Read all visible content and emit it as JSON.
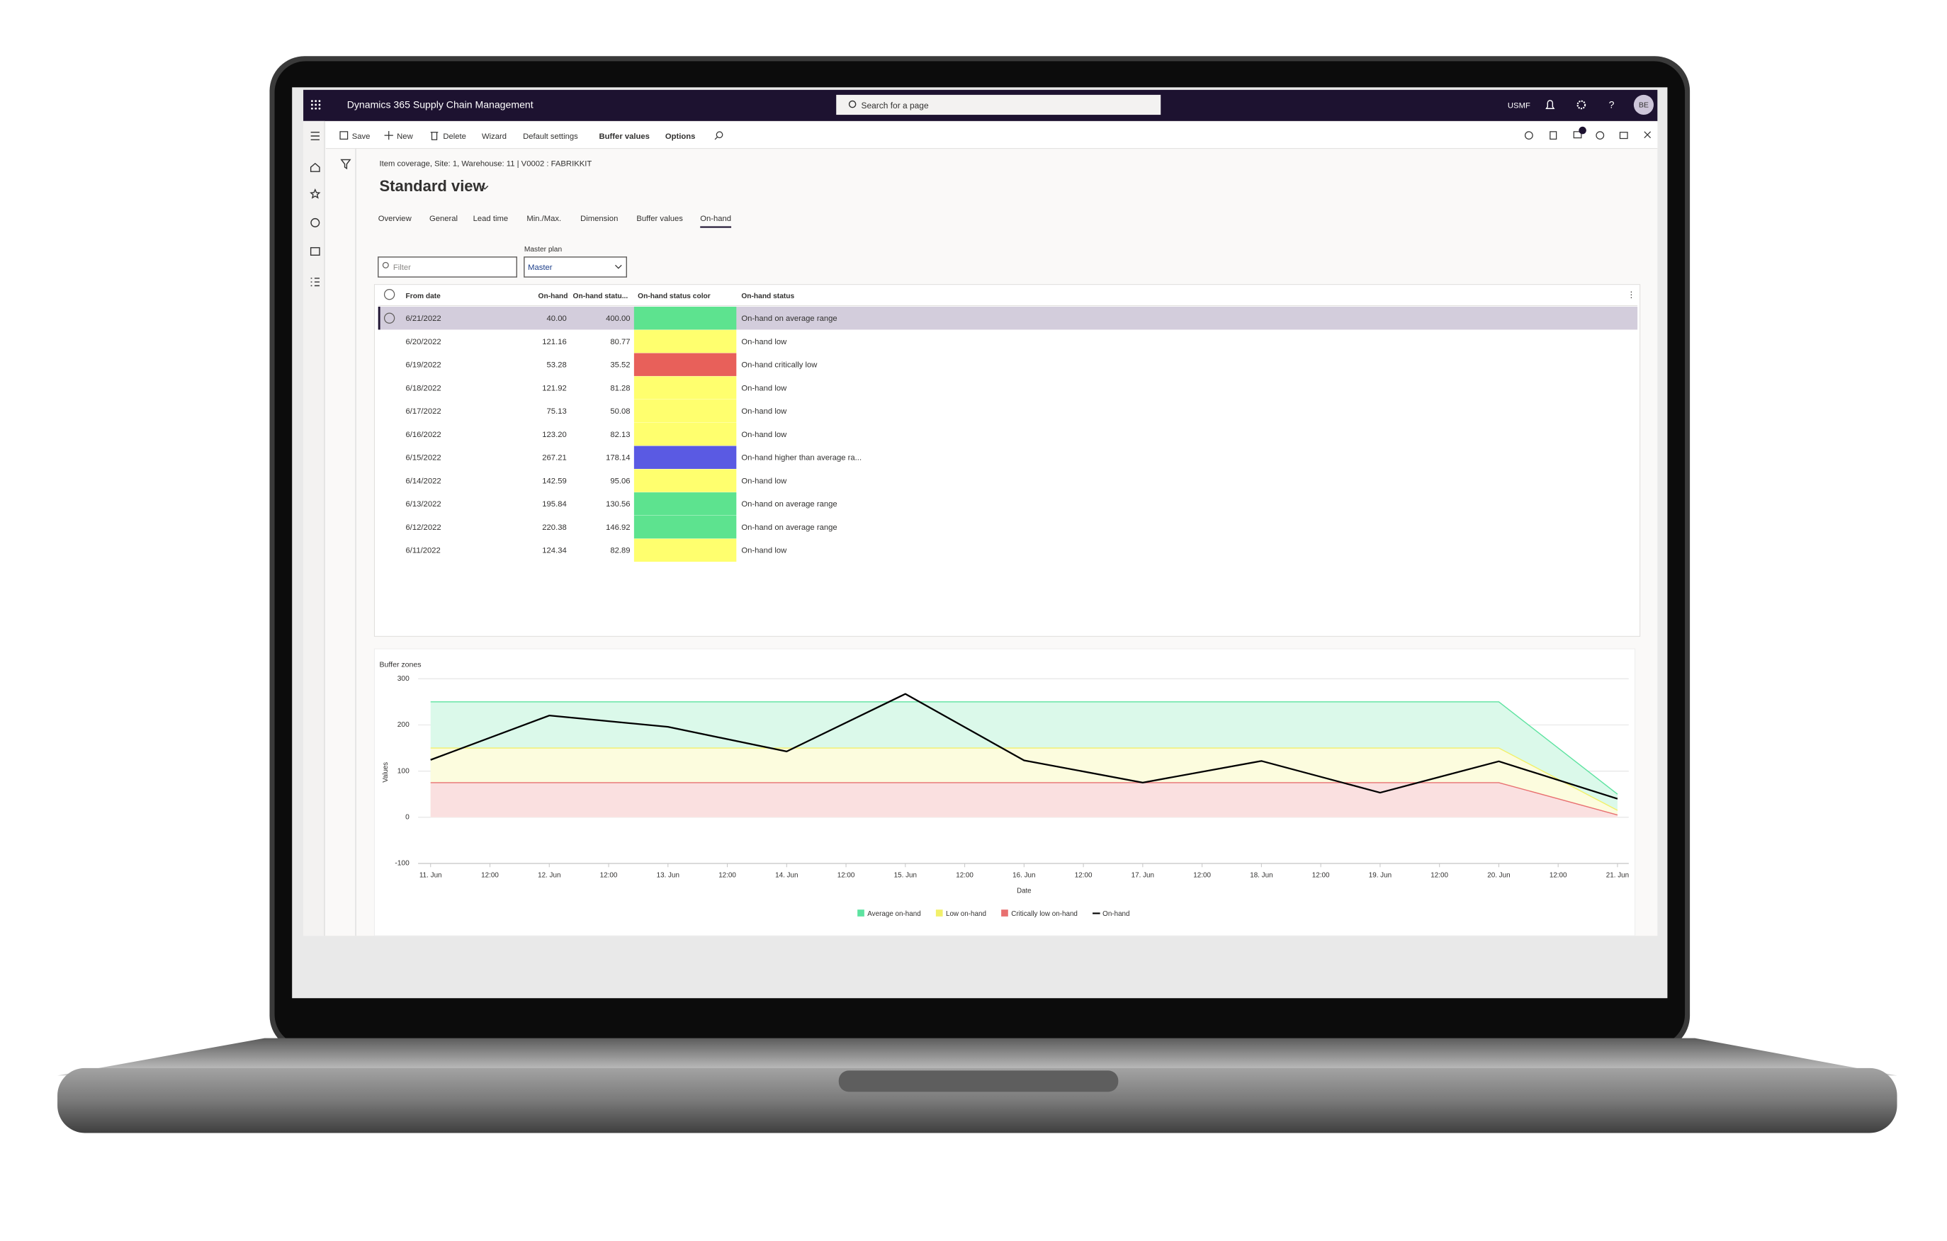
{
  "app": {
    "title": "Dynamics 365 Supply Chain Management",
    "search_placeholder": "Search for a page",
    "company": "USMF",
    "user_initials": "BE"
  },
  "toolbar": [
    "Save",
    "New",
    "Delete",
    "Wizard",
    "Default settings",
    "Buffer values",
    "Options"
  ],
  "breadcrumb": "Item coverage, Site: 1, Warehouse: 11  |  V0002 : FABRIKKIT",
  "view_title": "Standard view",
  "tabs": [
    "Overview",
    "General",
    "Lead time",
    "Min./Max.",
    "Dimension",
    "Buffer values",
    "On-hand"
  ],
  "selected_tab": 6,
  "filter_placeholder": "Filter",
  "master_plan": {
    "label": "Master plan",
    "value": "Master"
  },
  "table": {
    "columns": [
      "From date",
      "On-hand",
      "On-hand statu...",
      "On-hand status color",
      "On-hand status"
    ],
    "selected_row": 0,
    "rows": [
      [
        "6/21/2022",
        "40.00",
        "400.00",
        "On-hand on average range"
      ],
      [
        "6/20/2022",
        "121.16",
        "80.77",
        "On-hand low"
      ],
      [
        "6/19/2022",
        "53.28",
        "35.52",
        "On-hand critically low"
      ],
      [
        "6/18/2022",
        "121.92",
        "81.28",
        "On-hand low"
      ],
      [
        "6/17/2022",
        "75.13",
        "50.08",
        "On-hand low"
      ],
      [
        "6/16/2022",
        "123.20",
        "82.13",
        "On-hand low"
      ],
      [
        "6/15/2022",
        "267.21",
        "178.14",
        "On-hand higher than average ra..."
      ],
      [
        "6/14/2022",
        "142.59",
        "95.06",
        "On-hand low"
      ],
      [
        "6/13/2022",
        "195.84",
        "130.56",
        "On-hand on average range"
      ],
      [
        "6/12/2022",
        "220.38",
        "146.92",
        "On-hand on average range"
      ],
      [
        "6/11/2022",
        "124.34",
        "82.89",
        "On-hand low"
      ]
    ],
    "status_colors": [
      "#5de38f",
      "#ffff6e",
      "#e8605a",
      "#ffff6e",
      "#ffff6e",
      "#ffff6e",
      "#5a5ae3",
      "#ffff6e",
      "#5de38f",
      "#5de38f",
      "#ffff6e"
    ]
  },
  "chart_data": {
    "type": "area",
    "title": "Buffer zones",
    "x_label": "Date",
    "y_label": "Values",
    "x": [
      11,
      12,
      13,
      14,
      15,
      16,
      17,
      18,
      19,
      20,
      21
    ],
    "xlim": [
      11,
      21
    ],
    "xticks": [
      {
        "value": 11,
        "label": "11. Jun"
      },
      {
        "value": 11.5,
        "label": "12:00"
      },
      {
        "value": 12,
        "label": "12. Jun"
      },
      {
        "value": 12.5,
        "label": "12:00"
      },
      {
        "value": 13,
        "label": "13. Jun"
      },
      {
        "value": 13.5,
        "label": "12:00"
      },
      {
        "value": 14,
        "label": "14. Jun"
      },
      {
        "value": 14.5,
        "label": "12:00"
      },
      {
        "value": 15,
        "label": "15. Jun"
      },
      {
        "value": 15.5,
        "label": "12:00"
      },
      {
        "value": 16,
        "label": "16. Jun"
      },
      {
        "value": 16.5,
        "label": "12:00"
      },
      {
        "value": 17,
        "label": "17. Jun"
      },
      {
        "value": 17.5,
        "label": "12:00"
      },
      {
        "value": 18,
        "label": "18. Jun"
      },
      {
        "value": 18.5,
        "label": "12:00"
      },
      {
        "value": 19,
        "label": "19. Jun"
      },
      {
        "value": 19.5,
        "label": "12:00"
      },
      {
        "value": 20,
        "label": "20. Jun"
      },
      {
        "value": 20.5,
        "label": "12:00"
      },
      {
        "value": 21,
        "label": "21. Jun"
      }
    ],
    "ylim": [
      -100,
      300
    ],
    "yticks": [
      300,
      200,
      100,
      0,
      -100
    ],
    "grid": true,
    "series": [
      {
        "name": "Average on-hand",
        "type": "area",
        "color": "#5de3a0",
        "values": [
          250,
          250,
          250,
          250,
          250,
          250,
          250,
          250,
          250,
          250,
          50
        ]
      },
      {
        "name": "Low on-hand",
        "type": "area",
        "color": "#f2f06a",
        "values": [
          150,
          150,
          150,
          150,
          150,
          150,
          150,
          150,
          150,
          150,
          15
        ]
      },
      {
        "name": "Critically low on-hand",
        "type": "area",
        "color": "#e87070",
        "values": [
          75,
          75,
          75,
          75,
          75,
          75,
          75,
          75,
          75,
          75,
          5
        ]
      },
      {
        "name": "On-hand",
        "type": "line",
        "color": "#000000",
        "values": [
          124.34,
          220.38,
          195.84,
          142.59,
          267.21,
          123.2,
          75.13,
          121.92,
          53.28,
          121.16,
          40.0
        ]
      }
    ]
  }
}
